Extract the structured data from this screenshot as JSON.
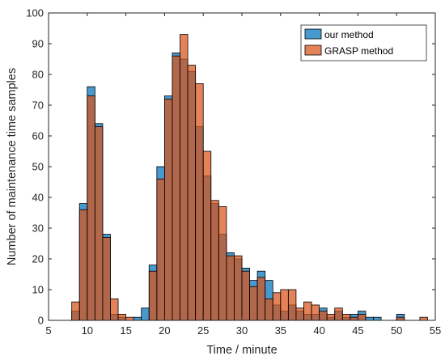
{
  "chart_data": {
    "type": "bar",
    "title": "",
    "xlabel": "Time / minute",
    "ylabel": "Number of maintenance time samples",
    "xlim": [
      5,
      55
    ],
    "ylim": [
      0,
      100
    ],
    "xticks": [
      5,
      10,
      15,
      20,
      25,
      30,
      35,
      40,
      45,
      50,
      55
    ],
    "yticks": [
      0,
      10,
      20,
      30,
      40,
      50,
      60,
      70,
      80,
      90,
      100
    ],
    "bin_width": 1,
    "bin_starts": [
      8,
      9,
      10,
      11,
      12,
      13,
      14,
      15,
      16,
      17,
      18,
      19,
      20,
      21,
      22,
      23,
      24,
      25,
      26,
      27,
      28,
      29,
      30,
      31,
      32,
      33,
      34,
      35,
      36,
      37,
      38,
      39,
      40,
      41,
      42,
      43,
      44,
      45,
      46,
      47,
      48,
      49,
      50,
      51,
      52,
      53
    ],
    "legend_position": "top-right",
    "series": [
      {
        "name": "our method",
        "color": "#0072BD",
        "values": [
          3,
          38,
          76,
          64,
          28,
          2,
          1,
          0,
          1,
          4,
          18,
          50,
          73,
          87,
          85,
          81,
          63,
          47,
          38,
          28,
          22,
          20,
          17,
          13,
          16,
          13,
          5,
          3,
          5,
          3,
          2,
          2,
          4,
          1,
          3,
          1,
          2,
          3,
          1,
          1,
          0,
          0,
          2,
          0,
          0,
          0
        ]
      },
      {
        "name": "GRASP method",
        "color": "#D95319",
        "values": [
          6,
          36,
          73,
          63,
          27,
          7,
          2,
          1,
          0,
          0,
          16,
          46,
          72,
          86,
          93,
          83,
          77,
          55,
          39,
          37,
          21,
          21,
          16,
          11,
          14,
          7,
          9,
          10,
          10,
          4,
          6,
          5,
          3,
          2,
          4,
          2,
          1,
          2,
          0,
          0,
          0,
          0,
          1,
          0,
          0,
          1
        ]
      }
    ]
  }
}
